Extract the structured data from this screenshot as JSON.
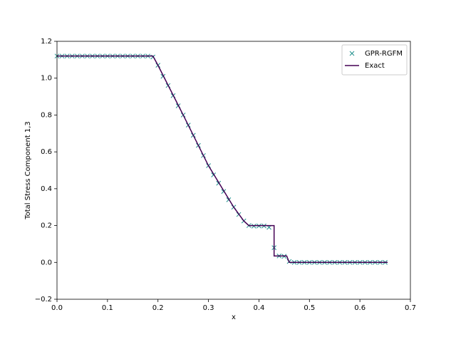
{
  "chart_data": {
    "type": "scatter",
    "xlabel": "x",
    "ylabel": "Total Stress Component 1,3",
    "xlim": [
      0,
      0.7
    ],
    "ylim": [
      -0.2,
      1.2
    ],
    "xticks": [
      {
        "value": 0,
        "label": "0.0"
      },
      0.1,
      0.2,
      0.3,
      0.4,
      0.5,
      0.6,
      0.7
    ],
    "yticks": [
      {
        "value": -0.2,
        "label": "−0.2"
      },
      {
        "value": 0,
        "label": "0.0"
      },
      0.2,
      0.4,
      0.6,
      0.8,
      {
        "value": 1,
        "label": "1.0"
      },
      1.2
    ],
    "legend": "upper right",
    "series": [
      {
        "name": "GPR-RGFM",
        "type": "scatter",
        "color": "#21908d",
        "x": [
          0,
          0.01,
          0.02,
          0.03,
          0.04,
          0.05,
          0.06,
          0.07,
          0.08,
          0.09,
          0.1,
          0.11,
          0.12,
          0.13,
          0.14,
          0.15,
          0.16,
          0.17,
          0.18,
          0.19,
          0.2,
          0.21,
          0.22,
          0.23,
          0.24,
          0.25,
          0.26,
          0.27,
          0.28,
          0.29,
          0.3,
          0.31,
          0.32,
          0.33,
          0.34,
          0.35,
          0.36,
          0.37,
          0.38,
          0.39,
          0.4,
          0.41,
          0.42,
          0.43,
          0.44,
          0.45,
          0.46,
          0.47,
          0.48,
          0.49,
          0.5,
          0.51,
          0.52,
          0.53,
          0.54,
          0.55,
          0.56,
          0.57,
          0.58,
          0.59,
          0.6,
          0.61,
          0.62,
          0.63,
          0.64,
          0.65
        ],
        "values": [
          1.12,
          1.12,
          1.12,
          1.12,
          1.12,
          1.12,
          1.12,
          1.12,
          1.12,
          1.12,
          1.12,
          1.12,
          1.12,
          1.12,
          1.12,
          1.12,
          1.12,
          1.12,
          1.12,
          1.115,
          1.07,
          1.01,
          0.96,
          0.905,
          0.85,
          0.8,
          0.745,
          0.69,
          0.635,
          0.58,
          0.525,
          0.475,
          0.43,
          0.385,
          0.34,
          0.3,
          0.26,
          0.225,
          0.2,
          0.197,
          0.198,
          0.198,
          0.19,
          0.08,
          0.035,
          0.033,
          0.005,
          0,
          0,
          0,
          0,
          0,
          0,
          0,
          0,
          0,
          0,
          0,
          0,
          0,
          0,
          0,
          0,
          0,
          0,
          0
        ]
      },
      {
        "name": "Exact",
        "type": "line",
        "color": "#440154",
        "x": [
          0,
          0.19,
          0.2,
          0.25,
          0.3,
          0.35,
          0.37,
          0.38,
          0.43,
          0.43,
          0.455,
          0.46,
          0.655
        ],
        "values": [
          1.12,
          1.12,
          1.07,
          0.8,
          0.525,
          0.3,
          0.225,
          0.2,
          0.2,
          0.035,
          0.035,
          0,
          0
        ]
      }
    ]
  }
}
